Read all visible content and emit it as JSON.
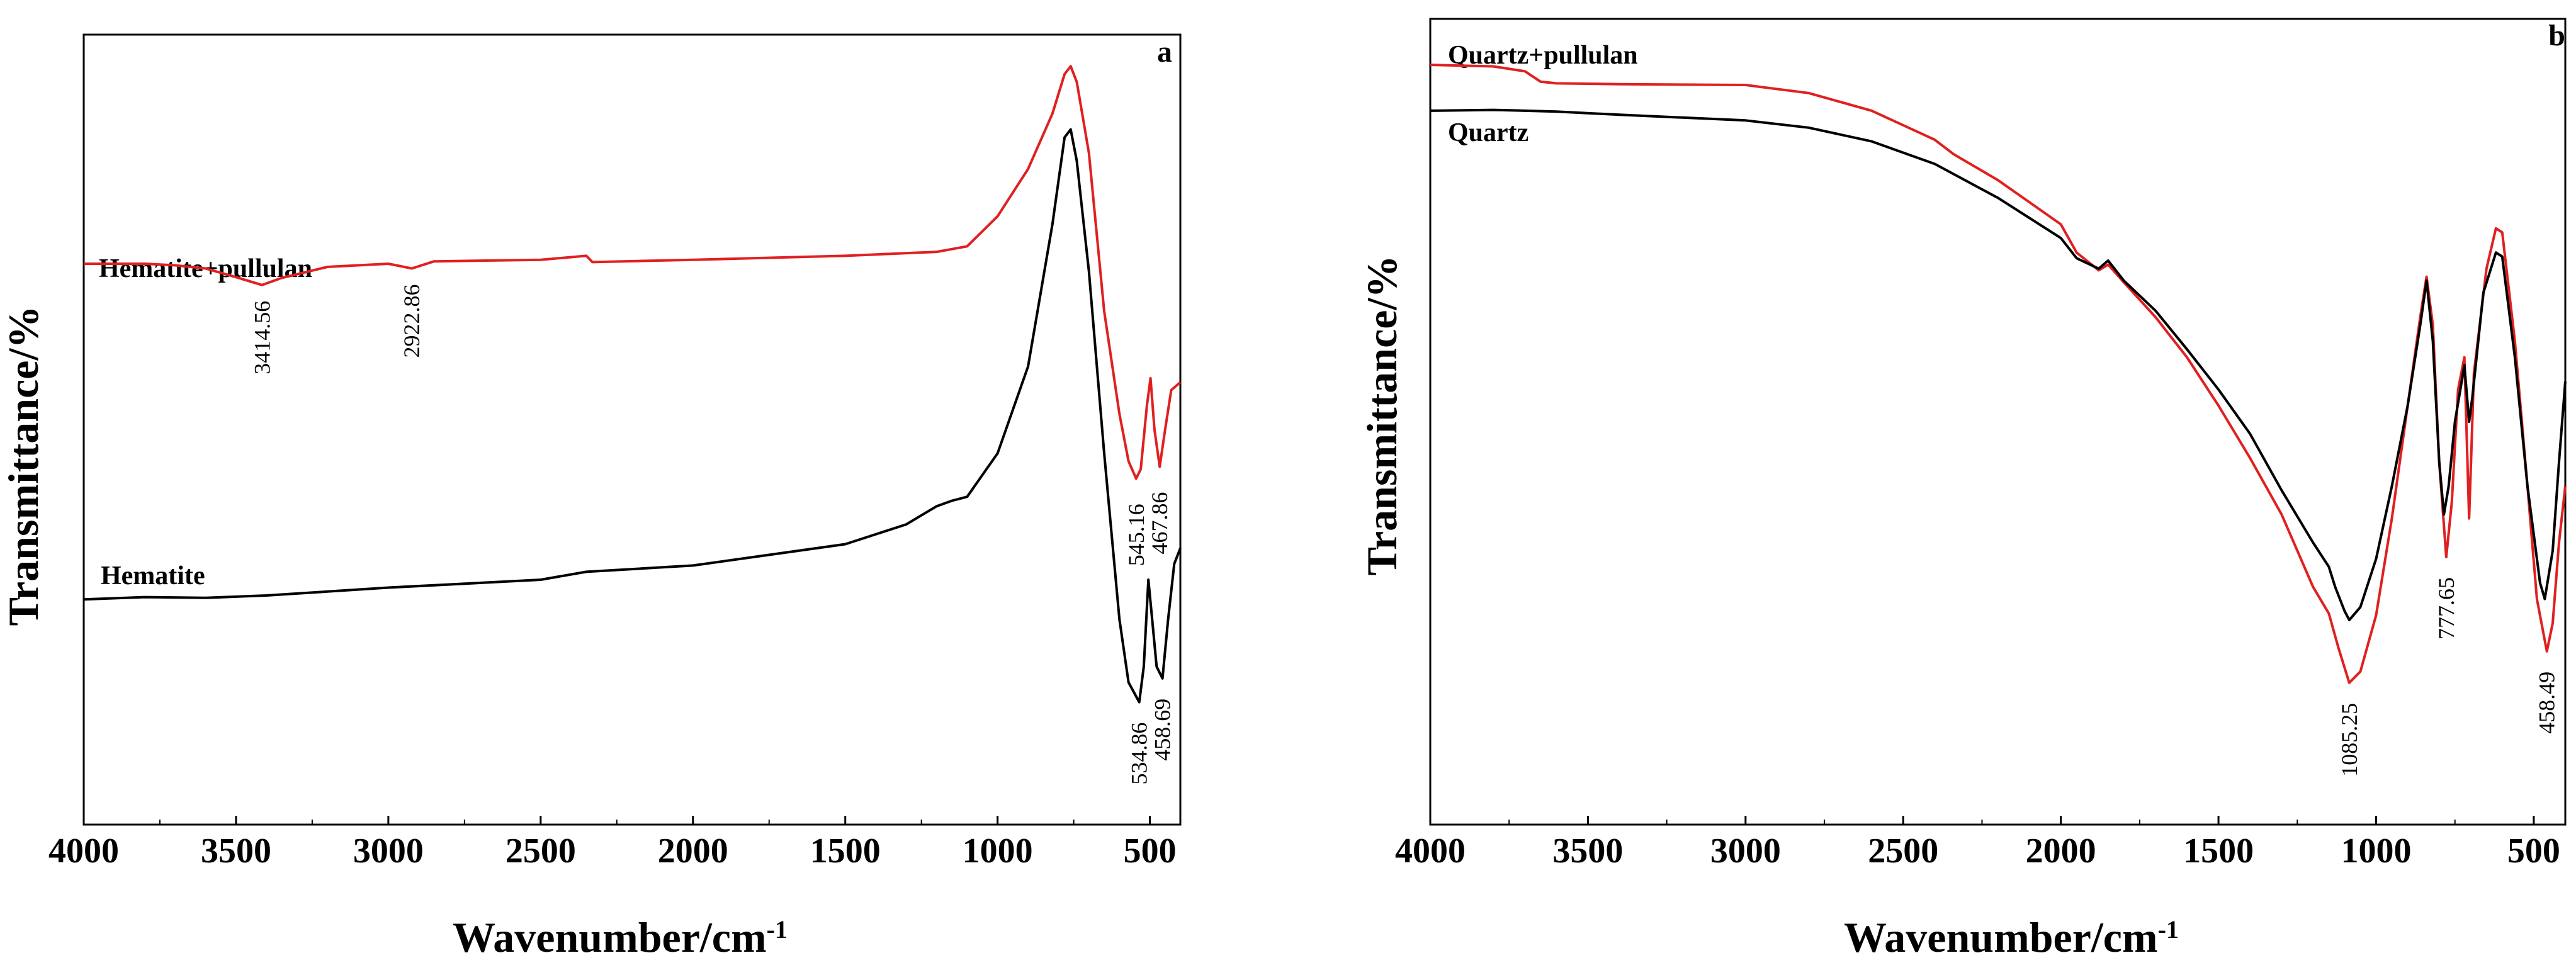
{
  "chart_data": [
    {
      "type": "line",
      "panel": "a",
      "xlabel": "Wavenumber/cm",
      "xlabel_sup": "-1",
      "ylabel": "Transmittance/%",
      "xlim": [
        4000,
        400
      ],
      "ylim": [
        0,
        100
      ],
      "x_ticks": [
        4000,
        3500,
        3000,
        2500,
        2000,
        1500,
        1000,
        500
      ],
      "series": [
        {
          "name": "Hematite+pullulan",
          "color": "#e02020",
          "points": [
            [
              4000,
              71
            ],
            [
              3800,
              71
            ],
            [
              3700,
              70.8
            ],
            [
              3600,
              70.4
            ],
            [
              3500,
              69.3
            ],
            [
              3414.56,
              68.3
            ],
            [
              3350,
              69.2
            ],
            [
              3200,
              70.6
            ],
            [
              3000,
              71
            ],
            [
              2922.86,
              70.4
            ],
            [
              2850,
              71.3
            ],
            [
              2500,
              71.5
            ],
            [
              2350,
              72
            ],
            [
              2330,
              71.2
            ],
            [
              2000,
              71.5
            ],
            [
              1500,
              72
            ],
            [
              1200,
              72.5
            ],
            [
              1100,
              73.2
            ],
            [
              1000,
              77
            ],
            [
              900,
              83
            ],
            [
              820,
              90
            ],
            [
              780,
              95
            ],
            [
              760,
              96
            ],
            [
              740,
              94
            ],
            [
              700,
              85
            ],
            [
              650,
              65
            ],
            [
              600,
              52
            ],
            [
              570,
              46
            ],
            [
              545.16,
              43.8
            ],
            [
              530,
              45
            ],
            [
              510,
              53
            ],
            [
              498,
              56.5
            ],
            [
              485,
              50
            ],
            [
              467.86,
              45.3
            ],
            [
              450,
              50
            ],
            [
              430,
              55
            ],
            [
              400,
              56
            ]
          ]
        },
        {
          "name": "Hematite",
          "color": "#000000",
          "points": [
            [
              4000,
              28.5
            ],
            [
              3800,
              28.8
            ],
            [
              3600,
              28.7
            ],
            [
              3400,
              29
            ],
            [
              3200,
              29.5
            ],
            [
              3000,
              30
            ],
            [
              2500,
              31
            ],
            [
              2350,
              32
            ],
            [
              2000,
              32.8
            ],
            [
              1500,
              35.5
            ],
            [
              1300,
              38
            ],
            [
              1200,
              40.3
            ],
            [
              1150,
              41
            ],
            [
              1100,
              41.5
            ],
            [
              1000,
              47
            ],
            [
              900,
              58
            ],
            [
              820,
              76
            ],
            [
              780,
              87
            ],
            [
              760,
              88
            ],
            [
              740,
              84
            ],
            [
              700,
              70
            ],
            [
              650,
              47
            ],
            [
              600,
              26
            ],
            [
              570,
              18
            ],
            [
              534.86,
              15.5
            ],
            [
              520,
              20
            ],
            [
              505,
              31
            ],
            [
              495,
              27
            ],
            [
              478,
              20
            ],
            [
              458.69,
              18.5
            ],
            [
              440,
              26
            ],
            [
              420,
              33
            ],
            [
              400,
              35
            ]
          ]
        }
      ],
      "annotations": [
        {
          "label": "3414.56",
          "series": "Hematite+pullulan",
          "x": 3414.56
        },
        {
          "label": "2922.86",
          "series": "Hematite+pullulan",
          "x": 2922.86
        },
        {
          "label": "545.16",
          "series": "Hematite+pullulan",
          "x": 545.16
        },
        {
          "label": "467.86",
          "series": "Hematite+pullulan",
          "x": 467.86
        },
        {
          "label": "534.86",
          "series": "Hematite",
          "x": 534.86
        },
        {
          "label": "458.69",
          "series": "Hematite",
          "x": 458.69
        }
      ]
    },
    {
      "type": "line",
      "panel": "b",
      "xlabel": "Wavenumber/cm",
      "xlabel_sup": "-1",
      "ylabel": "Transmittance/%",
      "xlim": [
        4000,
        400
      ],
      "ylim": [
        0,
        100
      ],
      "x_ticks": [
        4000,
        3500,
        3000,
        2500,
        2000,
        1500,
        1000,
        500
      ],
      "series": [
        {
          "name": "Quartz+pullulan",
          "color": "#e02020",
          "points": [
            [
              4000,
              94.3
            ],
            [
              3800,
              94.1
            ],
            [
              3700,
              93.5
            ],
            [
              3650,
              92.2
            ],
            [
              3600,
              92
            ],
            [
              3400,
              91.9
            ],
            [
              3000,
              91.8
            ],
            [
              2800,
              90.8
            ],
            [
              2600,
              88.6
            ],
            [
              2400,
              85
            ],
            [
              2340,
              83.2
            ],
            [
              2200,
              80
            ],
            [
              2000,
              74.5
            ],
            [
              1950,
              71
            ],
            [
              1880,
              68.8
            ],
            [
              1850,
              69.5
            ],
            [
              1800,
              67.3
            ],
            [
              1700,
              63
            ],
            [
              1600,
              58
            ],
            [
              1500,
              52
            ],
            [
              1400,
              45.5
            ],
            [
              1300,
              38.5
            ],
            [
              1200,
              29.5
            ],
            [
              1150,
              26.2
            ],
            [
              1120,
              22
            ],
            [
              1085.25,
              17.6
            ],
            [
              1050,
              19
            ],
            [
              1000,
              26
            ],
            [
              950,
              38
            ],
            [
              900,
              52
            ],
            [
              860,
              63
            ],
            [
              840,
              68
            ],
            [
              820,
              62
            ],
            [
              800,
              45
            ],
            [
              777.65,
              33.2
            ],
            [
              760,
              40
            ],
            [
              740,
              54
            ],
            [
              720,
              58
            ],
            [
              705,
              38
            ],
            [
              700,
              44
            ],
            [
              690,
              56
            ],
            [
              650,
              69
            ],
            [
              620,
              74
            ],
            [
              600,
              73.5
            ],
            [
              560,
              60
            ],
            [
              520,
              42
            ],
            [
              490,
              28
            ],
            [
              458.49,
              21.5
            ],
            [
              440,
              25
            ],
            [
              420,
              35
            ],
            [
              400,
              42
            ]
          ]
        },
        {
          "name": "Quartz",
          "color": "#000000",
          "points": [
            [
              4000,
              88.6
            ],
            [
              3800,
              88.7
            ],
            [
              3600,
              88.5
            ],
            [
              3400,
              88.1
            ],
            [
              3000,
              87.4
            ],
            [
              2800,
              86.5
            ],
            [
              2600,
              84.8
            ],
            [
              2400,
              82
            ],
            [
              2200,
              77.8
            ],
            [
              2000,
              72.8
            ],
            [
              1950,
              70.3
            ],
            [
              1880,
              69
            ],
            [
              1850,
              70
            ],
            [
              1800,
              67.5
            ],
            [
              1700,
              63.8
            ],
            [
              1600,
              59
            ],
            [
              1500,
              54
            ],
            [
              1400,
              48.5
            ],
            [
              1300,
              41.5
            ],
            [
              1200,
              35
            ],
            [
              1150,
              32
            ],
            [
              1130,
              29.5
            ],
            [
              1100,
              26.5
            ],
            [
              1085,
              25.4
            ],
            [
              1050,
              27
            ],
            [
              1000,
              33
            ],
            [
              950,
              42
            ],
            [
              900,
              52
            ],
            [
              860,
              62
            ],
            [
              840,
              67.5
            ],
            [
              820,
              60
            ],
            [
              800,
              45
            ],
            [
              785,
              38.5
            ],
            [
              770,
              42
            ],
            [
              750,
              50
            ],
            [
              720,
              57
            ],
            [
              705,
              50
            ],
            [
              695,
              53
            ],
            [
              660,
              66
            ],
            [
              620,
              71
            ],
            [
              600,
              70.5
            ],
            [
              560,
              58
            ],
            [
              520,
              42
            ],
            [
              480,
              30
            ],
            [
              465,
              28
            ],
            [
              440,
              34
            ],
            [
              420,
              45
            ],
            [
              400,
              55
            ]
          ]
        }
      ],
      "annotations": [
        {
          "label": "1085.25",
          "series": "Quartz+pullulan",
          "x": 1085.25
        },
        {
          "label": "777.65",
          "series": "Quartz+pullulan",
          "x": 777.65
        },
        {
          "label": "458.49",
          "series": "Quartz+pullulan",
          "x": 458.49
        }
      ]
    }
  ]
}
